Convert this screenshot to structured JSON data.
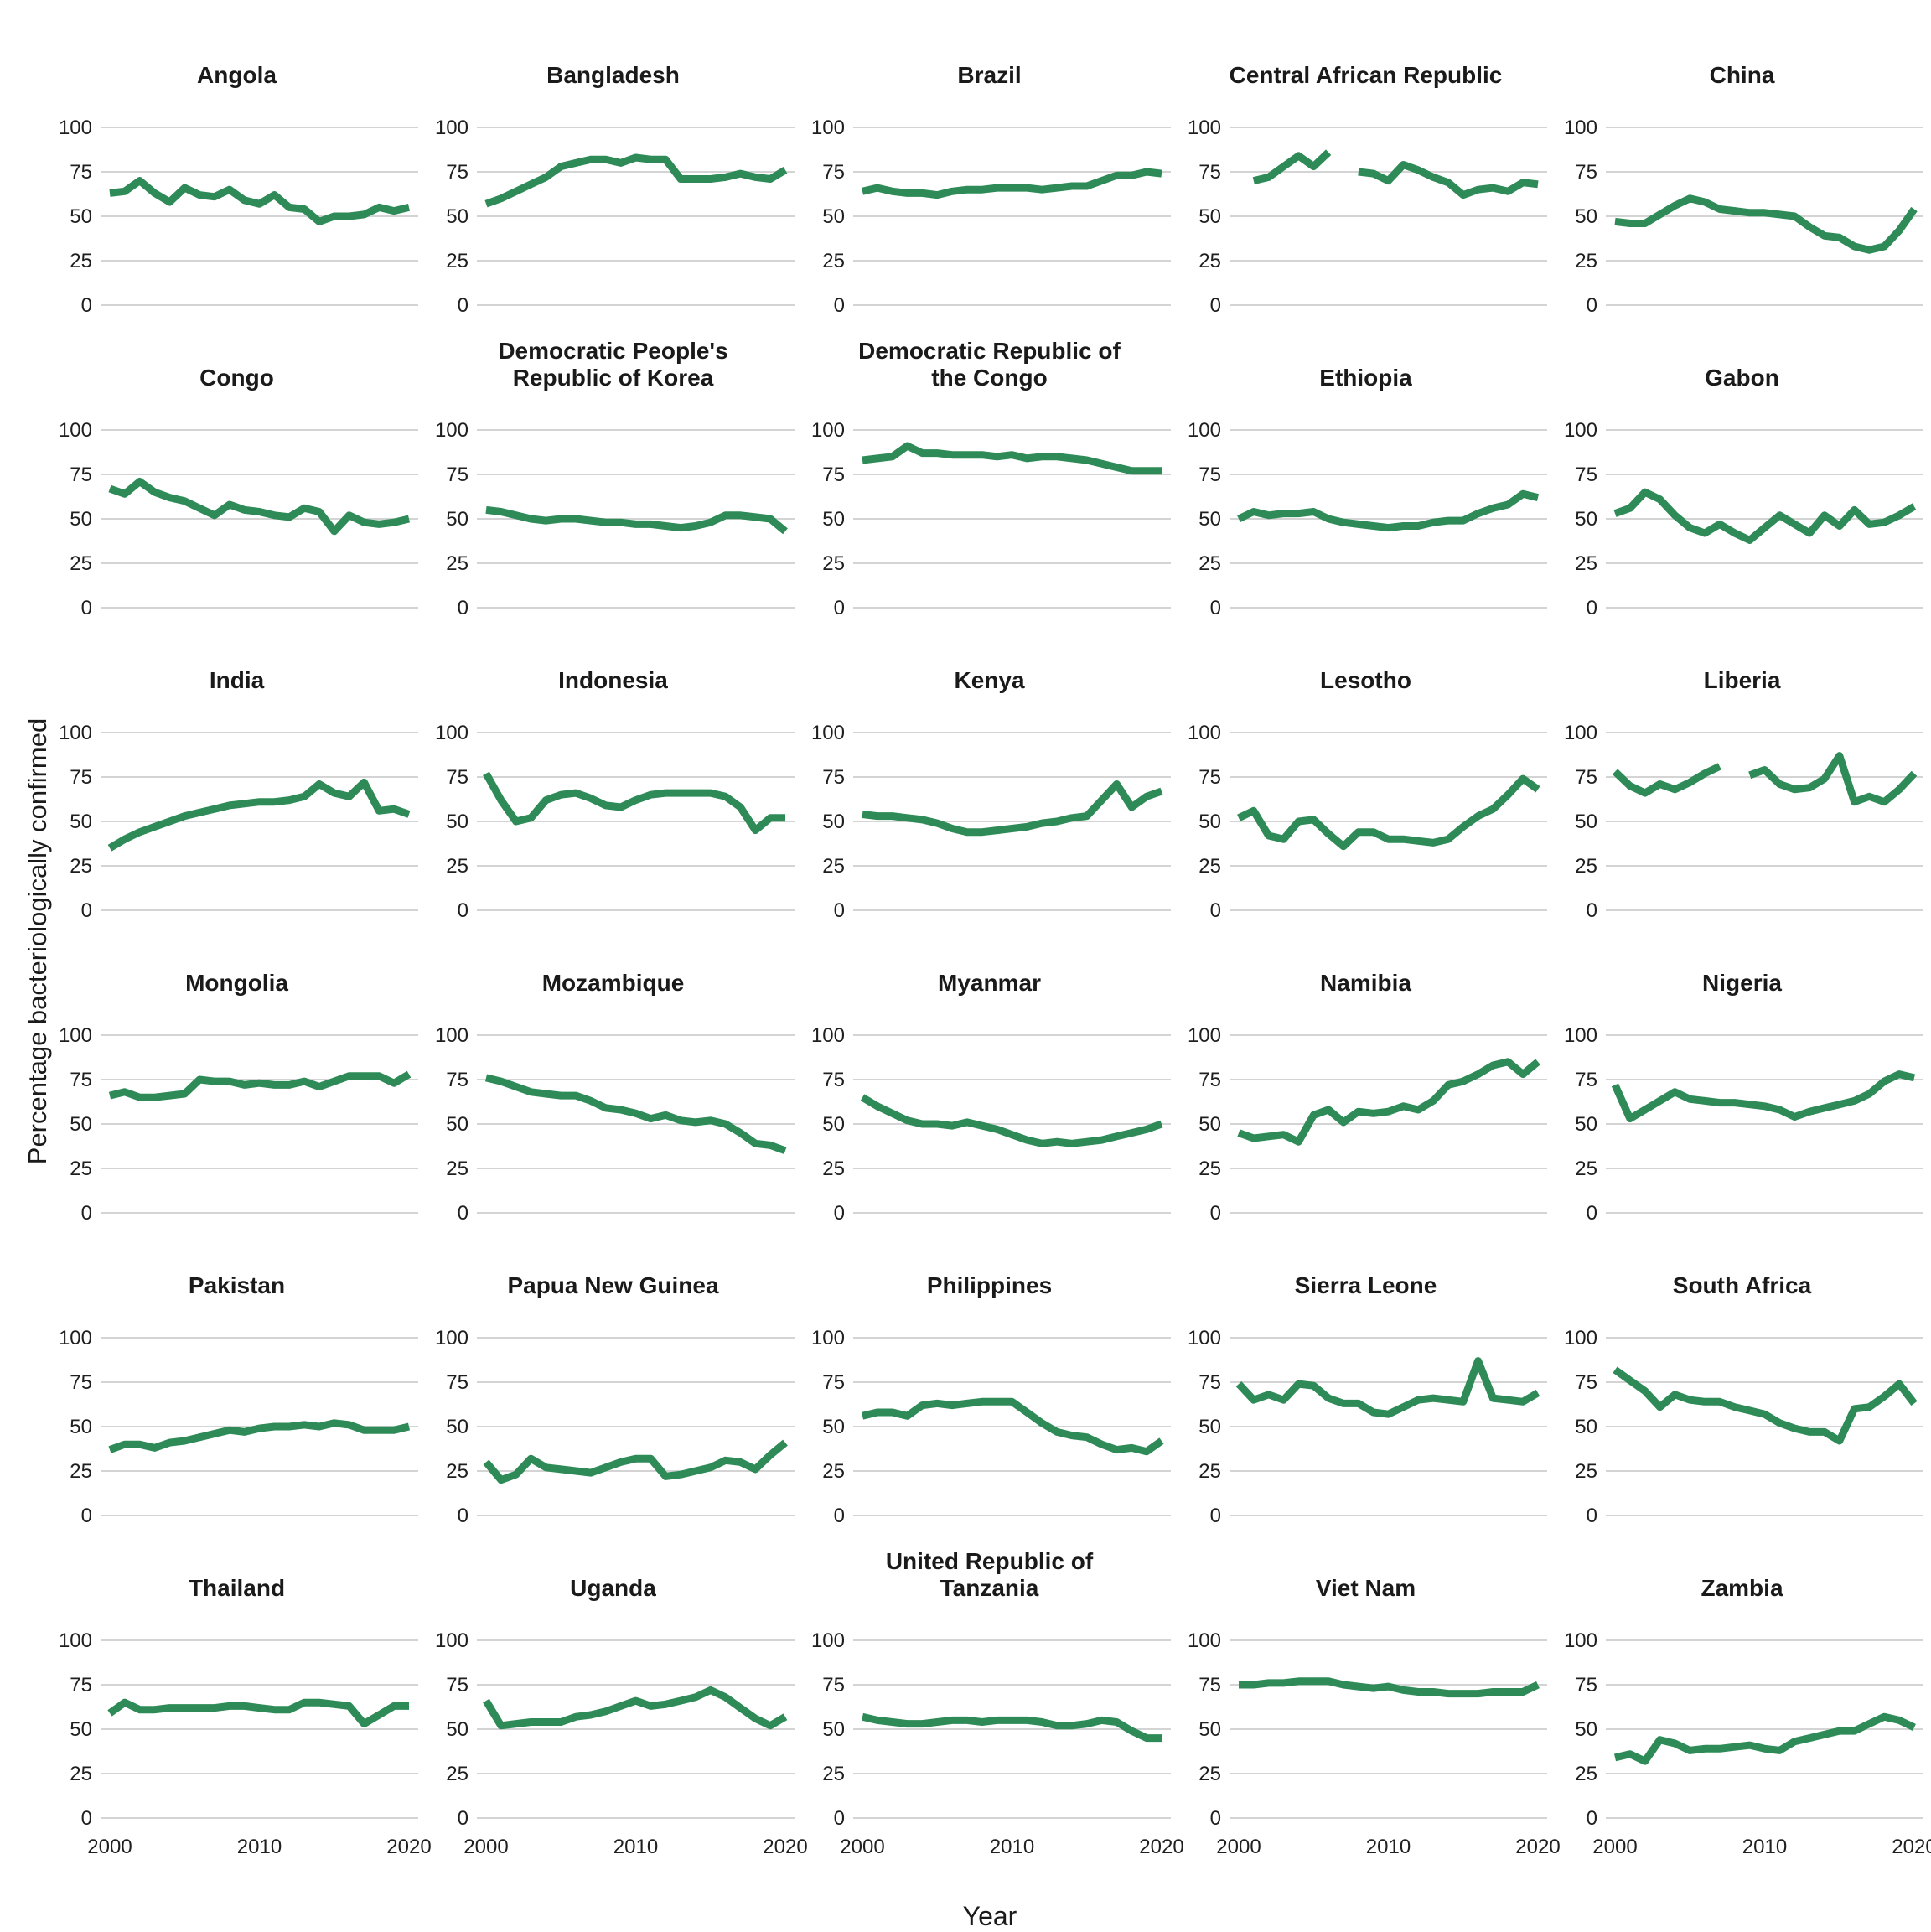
{
  "figure": {
    "line_color": "#2e8b57",
    "grid_color": "#d4d4d4",
    "text_color": "#1f1f1f"
  },
  "chart_data": {
    "type": "line",
    "title": "",
    "xlabel": "Year",
    "ylabel": "Percentage bacteriologically confirmed",
    "x": [
      2000,
      2001,
      2002,
      2003,
      2004,
      2005,
      2006,
      2007,
      2008,
      2009,
      2010,
      2011,
      2012,
      2013,
      2014,
      2015,
      2016,
      2017,
      2018,
      2019,
      2020
    ],
    "x_ticks": [
      2000,
      2010,
      2020
    ],
    "y_ticks": [
      0,
      25,
      50,
      75,
      100
    ],
    "ylim": [
      0,
      100
    ],
    "grid": "horizontal",
    "legend": "none",
    "facets": [
      {
        "title": "Angola",
        "values": [
          63,
          64,
          70,
          63,
          58,
          66,
          62,
          61,
          65,
          59,
          57,
          62,
          55,
          54,
          47,
          50,
          50,
          51,
          55,
          53,
          55
        ]
      },
      {
        "title": "Bangladesh",
        "values": [
          57,
          60,
          64,
          68,
          72,
          78,
          80,
          82,
          82,
          80,
          83,
          82,
          82,
          71,
          71,
          71,
          72,
          74,
          72,
          71,
          76
        ]
      },
      {
        "title": "Brazil",
        "values": [
          64,
          66,
          64,
          63,
          63,
          62,
          64,
          65,
          65,
          66,
          66,
          66,
          65,
          66,
          67,
          67,
          70,
          73,
          73,
          75,
          74
        ]
      },
      {
        "title": "Central African Republic",
        "values": [
          null,
          70,
          72,
          78,
          84,
          78,
          86,
          null,
          75,
          74,
          70,
          79,
          76,
          72,
          69,
          62,
          65,
          66,
          64,
          69,
          68
        ]
      },
      {
        "title": "China",
        "values": [
          47,
          46,
          46,
          51,
          56,
          60,
          58,
          54,
          53,
          52,
          52,
          51,
          50,
          44,
          39,
          38,
          33,
          31,
          33,
          42,
          54
        ]
      },
      {
        "title": "Congo",
        "values": [
          67,
          64,
          71,
          65,
          62,
          60,
          56,
          52,
          58,
          55,
          54,
          52,
          51,
          56,
          54,
          43,
          52,
          48,
          47,
          48,
          50
        ]
      },
      {
        "title": "Democratic People's Republic of Korea",
        "values": [
          55,
          54,
          52,
          50,
          49,
          50,
          50,
          49,
          48,
          48,
          47,
          47,
          46,
          45,
          46,
          48,
          52,
          52,
          51,
          50,
          43
        ]
      },
      {
        "title": "Democratic Republic of the Congo",
        "values": [
          83,
          84,
          85,
          91,
          87,
          87,
          86,
          86,
          86,
          85,
          86,
          84,
          85,
          85,
          84,
          83,
          81,
          79,
          77,
          77,
          77
        ]
      },
      {
        "title": "Ethiopia",
        "values": [
          50,
          54,
          52,
          53,
          53,
          54,
          50,
          48,
          47,
          46,
          45,
          46,
          46,
          48,
          49,
          49,
          53,
          56,
          58,
          64,
          62
        ]
      },
      {
        "title": "Gabon",
        "values": [
          53,
          56,
          65,
          61,
          52,
          45,
          42,
          47,
          42,
          38,
          45,
          52,
          47,
          42,
          52,
          46,
          55,
          47,
          48,
          52,
          57
        ]
      },
      {
        "title": "India",
        "values": [
          35,
          40,
          44,
          47,
          50,
          53,
          55,
          57,
          59,
          60,
          61,
          61,
          62,
          64,
          71,
          66,
          64,
          72,
          56,
          57,
          54
        ]
      },
      {
        "title": "Indonesia",
        "values": [
          77,
          62,
          50,
          52,
          62,
          65,
          66,
          63,
          59,
          58,
          62,
          65,
          66,
          66,
          66,
          66,
          64,
          58,
          45,
          52,
          52
        ]
      },
      {
        "title": "Kenya",
        "values": [
          54,
          53,
          53,
          52,
          51,
          49,
          46,
          44,
          44,
          45,
          46,
          47,
          49,
          50,
          52,
          53,
          62,
          71,
          58,
          64,
          67
        ]
      },
      {
        "title": "Lesotho",
        "values": [
          52,
          56,
          42,
          40,
          50,
          51,
          43,
          36,
          44,
          44,
          40,
          40,
          39,
          38,
          40,
          47,
          53,
          57,
          65,
          74,
          68
        ]
      },
      {
        "title": "Liberia",
        "values": [
          78,
          70,
          66,
          71,
          68,
          72,
          77,
          81,
          null,
          76,
          79,
          71,
          68,
          69,
          74,
          87,
          61,
          64,
          61,
          68,
          77
        ]
      },
      {
        "title": "Mongolia",
        "values": [
          66,
          68,
          65,
          65,
          66,
          67,
          75,
          74,
          74,
          72,
          73,
          72,
          72,
          74,
          71,
          74,
          77,
          77,
          77,
          73,
          78
        ]
      },
      {
        "title": "Mozambique",
        "values": [
          76,
          74,
          71,
          68,
          67,
          66,
          66,
          63,
          59,
          58,
          56,
          53,
          55,
          52,
          51,
          52,
          50,
          45,
          39,
          38,
          35
        ]
      },
      {
        "title": "Myanmar",
        "values": [
          65,
          60,
          56,
          52,
          50,
          50,
          49,
          51,
          49,
          47,
          44,
          41,
          39,
          40,
          39,
          40,
          41,
          43,
          45,
          47,
          50
        ]
      },
      {
        "title": "Namibia",
        "values": [
          45,
          42,
          43,
          44,
          40,
          55,
          58,
          51,
          57,
          56,
          57,
          60,
          58,
          63,
          72,
          74,
          78,
          83,
          85,
          78,
          85
        ]
      },
      {
        "title": "Nigeria",
        "values": [
          72,
          53,
          58,
          63,
          68,
          64,
          63,
          62,
          62,
          61,
          60,
          58,
          54,
          57,
          59,
          61,
          63,
          67,
          74,
          78,
          76
        ]
      },
      {
        "title": "Pakistan",
        "values": [
          37,
          40,
          40,
          38,
          41,
          42,
          44,
          46,
          48,
          47,
          49,
          50,
          50,
          51,
          50,
          52,
          51,
          48,
          48,
          48,
          50
        ]
      },
      {
        "title": "Papua New Guinea",
        "values": [
          30,
          20,
          23,
          32,
          27,
          26,
          25,
          24,
          27,
          30,
          32,
          32,
          22,
          23,
          25,
          27,
          31,
          30,
          26,
          34,
          41
        ]
      },
      {
        "title": "Philippines",
        "values": [
          56,
          58,
          58,
          56,
          62,
          63,
          62,
          63,
          64,
          64,
          64,
          58,
          52,
          47,
          45,
          44,
          40,
          37,
          38,
          36,
          42
        ]
      },
      {
        "title": "Sierra Leone",
        "values": [
          74,
          65,
          68,
          65,
          74,
          73,
          66,
          63,
          63,
          58,
          57,
          61,
          65,
          66,
          65,
          64,
          87,
          66,
          65,
          64,
          69
        ]
      },
      {
        "title": "South Africa",
        "values": [
          82,
          76,
          70,
          61,
          68,
          65,
          64,
          64,
          61,
          59,
          57,
          52,
          49,
          47,
          47,
          42,
          60,
          61,
          67,
          74,
          63
        ]
      },
      {
        "title": "Thailand",
        "values": [
          59,
          65,
          61,
          61,
          62,
          62,
          62,
          62,
          63,
          63,
          62,
          61,
          61,
          65,
          65,
          64,
          63,
          53,
          58,
          63,
          63
        ]
      },
      {
        "title": "Uganda",
        "values": [
          66,
          52,
          53,
          54,
          54,
          54,
          57,
          58,
          60,
          63,
          66,
          63,
          64,
          66,
          68,
          72,
          68,
          62,
          56,
          52,
          57
        ]
      },
      {
        "title": "United Republic of Tanzania",
        "values": [
          57,
          55,
          54,
          53,
          53,
          54,
          55,
          55,
          54,
          55,
          55,
          55,
          54,
          52,
          52,
          53,
          55,
          54,
          49,
          45,
          45
        ]
      },
      {
        "title": "Viet Nam",
        "values": [
          75,
          75,
          76,
          76,
          77,
          77,
          77,
          75,
          74,
          73,
          74,
          72,
          71,
          71,
          70,
          70,
          70,
          71,
          71,
          71,
          75
        ]
      },
      {
        "title": "Zambia",
        "values": [
          34,
          36,
          32,
          44,
          42,
          38,
          39,
          39,
          40,
          41,
          39,
          38,
          43,
          45,
          47,
          49,
          49,
          53,
          57,
          55,
          51
        ]
      }
    ]
  }
}
